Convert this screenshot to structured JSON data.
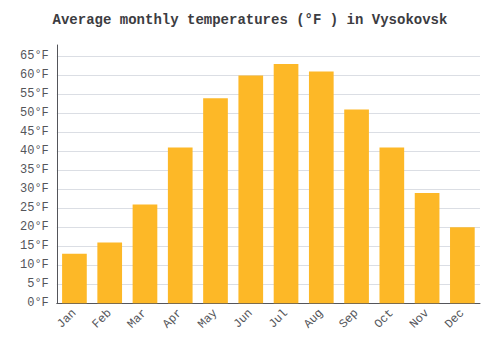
{
  "chart_data": {
    "type": "bar",
    "title": "Average monthly temperatures (°F ) in Vysokovsk",
    "categories": [
      "Jan",
      "Feb",
      "Mar",
      "Apr",
      "May",
      "Jun",
      "Jul",
      "Aug",
      "Sep",
      "Oct",
      "Nov",
      "Dec"
    ],
    "values": [
      13,
      16,
      26,
      41,
      54,
      60,
      63,
      61,
      51,
      41,
      29,
      20
    ],
    "color": "#FDB827",
    "ylim": [
      0,
      68
    ],
    "yticks": [
      {
        "value": 0,
        "label": "0°F"
      },
      {
        "value": 5,
        "label": "5°F"
      },
      {
        "value": 10,
        "label": "10°F"
      },
      {
        "value": 15,
        "label": "15°F"
      },
      {
        "value": 20,
        "label": "20°F"
      },
      {
        "value": 25,
        "label": "25°F"
      },
      {
        "value": 30,
        "label": "30°F"
      },
      {
        "value": 35,
        "label": "35°F"
      },
      {
        "value": 40,
        "label": "40°F"
      },
      {
        "value": 45,
        "label": "45°F"
      },
      {
        "value": 50,
        "label": "50°F"
      },
      {
        "value": 55,
        "label": "55°F"
      },
      {
        "value": 60,
        "label": "60°F"
      },
      {
        "value": 65,
        "label": "65°F"
      }
    ],
    "grid": true
  }
}
